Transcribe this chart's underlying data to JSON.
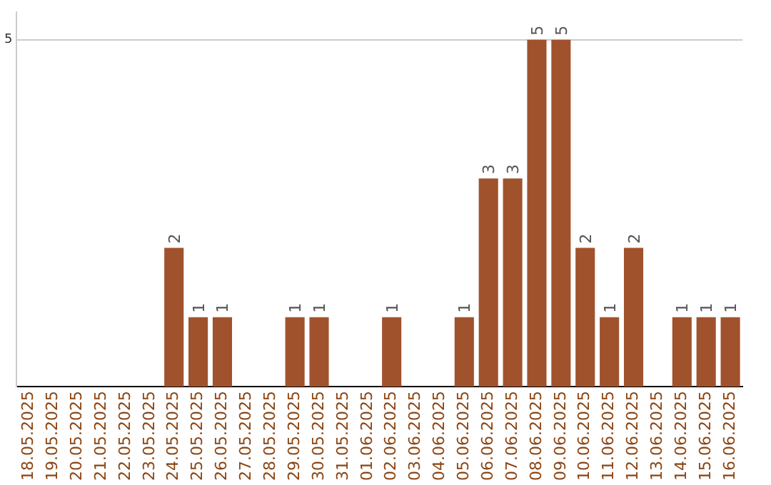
{
  "chart_data": {
    "type": "bar",
    "categories": [
      "18.05.2025",
      "19.05.2025",
      "20.05.2025",
      "21.05.2025",
      "22.05.2025",
      "23.05.2025",
      "24.05.2025",
      "25.05.2025",
      "26.05.2025",
      "27.05.2025",
      "28.05.2025",
      "29.05.2025",
      "30.05.2025",
      "31.05.2025",
      "01.06.2025",
      "02.06.2025",
      "03.06.2025",
      "04.06.2025",
      "05.06.2025",
      "06.06.2025",
      "07.06.2025",
      "08.06.2025",
      "09.06.2025",
      "10.06.2025",
      "11.06.2025",
      "12.06.2025",
      "13.06.2025",
      "14.06.2025",
      "15.06.2025",
      "16.06.2025"
    ],
    "values": [
      0,
      0,
      0,
      0,
      0,
      0,
      2,
      1,
      1,
      0,
      0,
      1,
      1,
      0,
      0,
      1,
      0,
      0,
      1,
      3,
      3,
      5,
      5,
      2,
      1,
      2,
      0,
      1,
      1,
      1
    ],
    "value_labels": [
      null,
      null,
      null,
      null,
      null,
      null,
      "2",
      "1",
      "1",
      null,
      null,
      "1",
      "1",
      null,
      null,
      "1",
      null,
      null,
      "1",
      "3",
      "3",
      "5",
      "5",
      "2",
      "1",
      "2",
      null,
      "1",
      "1",
      "1"
    ],
    "color": "#a0522d",
    "ylim": [
      0,
      5.4
    ],
    "yticks": [
      5
    ],
    "grid": "y",
    "legend": false
  }
}
